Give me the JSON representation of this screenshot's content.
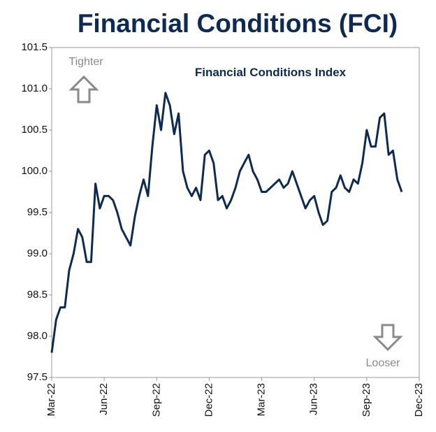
{
  "chart_data": {
    "type": "line",
    "title": "Financial Conditions (FCI)",
    "annotations": [
      "Tighter",
      "Looser"
    ],
    "x": [
      0,
      0.25,
      0.5,
      0.75,
      1,
      1.25,
      1.5,
      1.75,
      2,
      2.25,
      2.5,
      2.75,
      3,
      3.25,
      3.5,
      3.75,
      4,
      4.25,
      4.5,
      4.75,
      5,
      5.25,
      5.5,
      5.75,
      6,
      6.25,
      6.5,
      6.75,
      7,
      7.25,
      7.5,
      7.75,
      8,
      8.25,
      8.5,
      8.75,
      9,
      9.25,
      9.5,
      9.75,
      10,
      10.25,
      10.5,
      10.75,
      11,
      11.25,
      11.5,
      11.75,
      12,
      12.25,
      12.5,
      12.75,
      13,
      13.25,
      13.5,
      13.75,
      14,
      14.25,
      14.5,
      14.75,
      15,
      15.25,
      15.5,
      15.75,
      16,
      16.25,
      16.5,
      16.75,
      17,
      17.25,
      17.5,
      17.75,
      18,
      18.25,
      18.5,
      18.75,
      19,
      19.25,
      19.5,
      19.75,
      20
    ],
    "series": [
      {
        "name": "Financial Conditions Index",
        "color": "#0d2b52",
        "values": [
          97.8,
          98.2,
          98.35,
          98.35,
          98.8,
          99.0,
          99.3,
          99.2,
          98.9,
          98.9,
          99.85,
          99.55,
          99.7,
          99.7,
          99.65,
          99.5,
          99.3,
          99.2,
          99.1,
          99.45,
          99.7,
          99.9,
          99.7,
          100.3,
          100.8,
          100.5,
          100.95,
          100.8,
          100.45,
          100.7,
          100.0,
          99.8,
          99.7,
          99.8,
          99.65,
          100.2,
          100.25,
          100.1,
          99.65,
          99.7,
          99.55,
          99.65,
          99.8,
          100.0,
          100.1,
          100.2,
          100.0,
          99.9,
          99.75,
          99.75,
          99.8,
          99.85,
          99.9,
          99.8,
          99.85,
          100.0,
          99.85,
          99.7,
          99.55,
          99.65,
          99.7,
          99.5,
          99.35,
          99.4,
          99.75,
          99.8,
          99.95,
          99.8,
          99.75,
          99.9,
          99.85,
          100.1,
          100.5,
          100.3,
          100.3,
          100.65,
          100.7,
          100.2,
          100.25,
          99.9,
          99.75
        ]
      }
    ],
    "xlim": [
      0,
      21
    ],
    "xticks": [
      {
        "value": 0,
        "label": "Mar-22"
      },
      {
        "value": 3,
        "label": "Jun-22"
      },
      {
        "value": 6,
        "label": "Sep-22"
      },
      {
        "value": 9,
        "label": "Dec-22"
      },
      {
        "value": 12,
        "label": "Mar-23"
      },
      {
        "value": 15,
        "label": "Jun-23"
      },
      {
        "value": 18,
        "label": "Sep-23"
      },
      {
        "value": 21,
        "label": "Dec-23"
      }
    ],
    "ylim": [
      97.5,
      101.5
    ],
    "yticks": [
      97.5,
      {
        "value": 98,
        "label": "98.0"
      },
      98.5,
      {
        "value": 99,
        "label": "99.0"
      },
      99.5,
      {
        "value": 100,
        "label": "100.0"
      },
      100.5,
      {
        "value": 101,
        "label": "101.0"
      },
      101.5
    ],
    "grid": false
  }
}
